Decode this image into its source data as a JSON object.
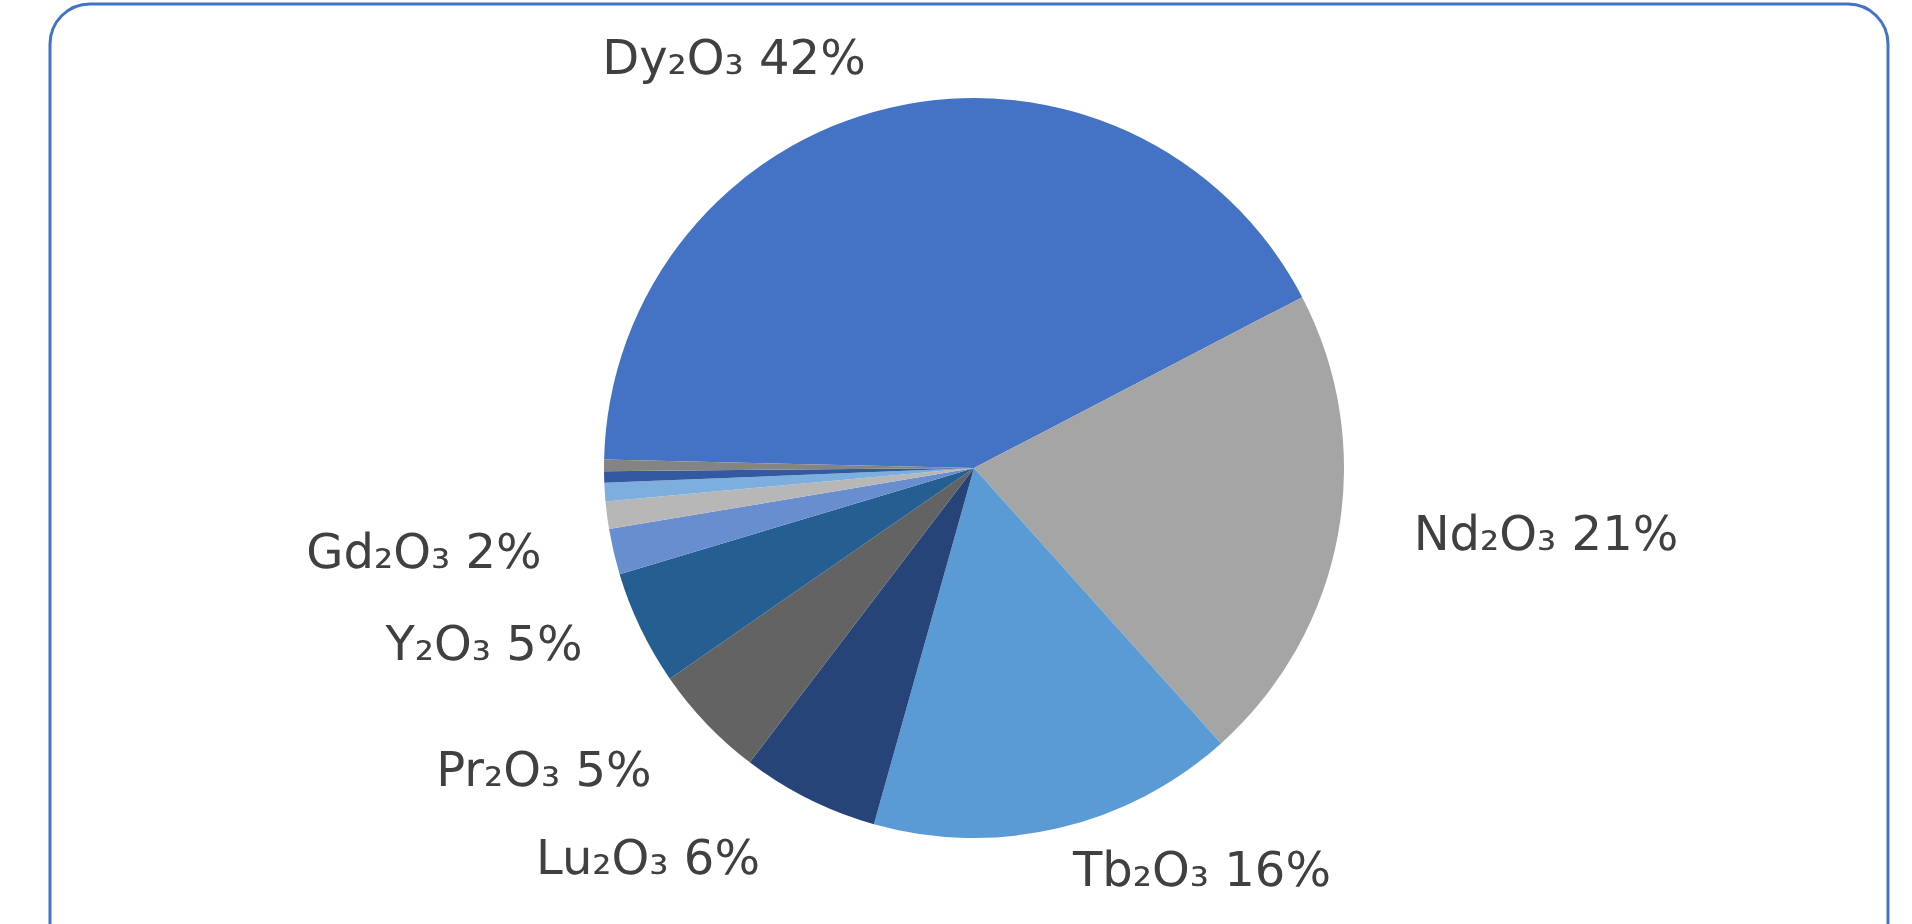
{
  "chart_data": {
    "type": "pie",
    "categories": [
      "Dy₂O₃",
      "Nd₂O₃",
      "Tb₂O₃",
      "Lu₂O₃",
      "Pr₂O₃",
      "Y₂O₃",
      "Gd₂O₃",
      null,
      null,
      null,
      null
    ],
    "values": [
      42,
      21,
      16,
      6,
      5,
      5,
      2,
      1.2,
      0.8,
      0.5,
      0.5
    ],
    "value_labels": [
      "42%",
      "21%",
      "16%",
      "6%",
      "5%",
      "5%",
      "2%",
      null,
      null,
      null,
      null
    ],
    "colors": [
      "#4472c4",
      "#a5a5a5",
      "#5b9bd5",
      "#264478",
      "#636363",
      "#255e91",
      "#698ed0",
      "#b7b7b7",
      "#7cafdd",
      "#335aa1",
      "#848484"
    ]
  }
}
